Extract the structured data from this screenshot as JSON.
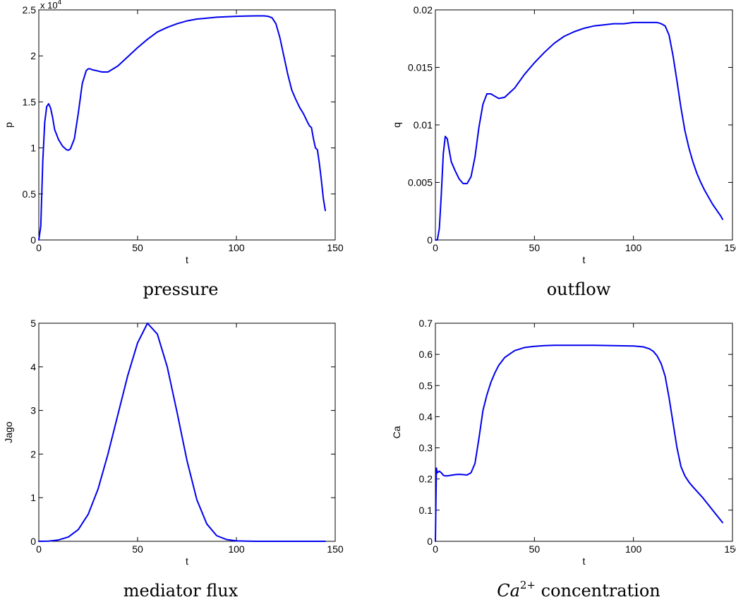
{
  "chart_data": [
    {
      "type": "line",
      "caption": "pressure",
      "xlabel": "t",
      "ylabel": "p",
      "xlim": [
        0,
        150
      ],
      "ylim": [
        0,
        25000
      ],
      "xticks": [
        0,
        50,
        100,
        150
      ],
      "yticks": [
        0,
        5000,
        10000,
        15000,
        20000,
        25000
      ],
      "ytick_labels": [
        "0",
        "0.5",
        "1",
        "1.5",
        "2",
        "2.5"
      ],
      "y_multiplier": {
        "base": "x 10",
        "exp": "4"
      },
      "grid": false,
      "series": [
        {
          "color": "#0000ee",
          "x": [
            0,
            1,
            2,
            3,
            4,
            5,
            6,
            7,
            8,
            10,
            12,
            14,
            15,
            16,
            18,
            20,
            22,
            24,
            25,
            26,
            27,
            28,
            30,
            32,
            35,
            40,
            45,
            50,
            55,
            60,
            65,
            70,
            75,
            80,
            85,
            90,
            95,
            100,
            105,
            110,
            112,
            114,
            116,
            118,
            120,
            122,
            124,
            126,
            128,
            130,
            132,
            134,
            136,
            137,
            138,
            139,
            140,
            141,
            142,
            143,
            144,
            145
          ],
          "y": [
            0,
            1500,
            8500,
            12800,
            14500,
            14800,
            14300,
            13300,
            12000,
            10900,
            10200,
            9800,
            9750,
            9900,
            11000,
            13800,
            17000,
            18400,
            18600,
            18600,
            18500,
            18450,
            18350,
            18250,
            18250,
            18900,
            19900,
            20900,
            21800,
            22600,
            23100,
            23500,
            23800,
            24000,
            24100,
            24200,
            24250,
            24300,
            24330,
            24350,
            24350,
            24350,
            24300,
            24150,
            23500,
            22000,
            20000,
            18000,
            16300,
            15300,
            14400,
            13700,
            12800,
            12400,
            12200,
            11000,
            10000,
            9800,
            8300,
            6500,
            4500,
            3200
          ]
        }
      ]
    },
    {
      "type": "line",
      "caption": "outflow",
      "xlabel": "t",
      "ylabel": "q",
      "xlim": [
        0,
        150
      ],
      "ylim": [
        0,
        0.02
      ],
      "xticks": [
        0,
        50,
        100,
        150
      ],
      "yticks": [
        0,
        0.005,
        0.01,
        0.015,
        0.02
      ],
      "ytick_labels": [
        "0",
        "0.005",
        "0.01",
        "0.015",
        "0.02"
      ],
      "grid": false,
      "series": [
        {
          "color": "#0000ee",
          "x": [
            0,
            1,
            2,
            3,
            4,
            5,
            6,
            7,
            8,
            10,
            12,
            14,
            16,
            18,
            20,
            22,
            24,
            26,
            28,
            30,
            32,
            35,
            40,
            45,
            50,
            55,
            60,
            65,
            70,
            75,
            80,
            85,
            90,
            95,
            100,
            105,
            110,
            112,
            114,
            116,
            118,
            120,
            122,
            124,
            126,
            128,
            130,
            132,
            134,
            136,
            138,
            140,
            142,
            144,
            145
          ],
          "y": [
            0,
            0,
            0.001,
            0.004,
            0.0075,
            0.009,
            0.0088,
            0.0078,
            0.0068,
            0.006,
            0.0053,
            0.0049,
            0.0049,
            0.0055,
            0.0072,
            0.0098,
            0.0118,
            0.0127,
            0.0127,
            0.0125,
            0.0123,
            0.0124,
            0.0132,
            0.0144,
            0.0154,
            0.0163,
            0.0171,
            0.0177,
            0.0181,
            0.0184,
            0.0186,
            0.0187,
            0.0188,
            0.0188,
            0.0189,
            0.0189,
            0.0189,
            0.0189,
            0.0188,
            0.0186,
            0.0178,
            0.016,
            0.0138,
            0.0115,
            0.0095,
            0.008,
            0.0068,
            0.0058,
            0.005,
            0.0043,
            0.0037,
            0.0031,
            0.0026,
            0.0021,
            0.0018
          ]
        }
      ]
    },
    {
      "type": "line",
      "caption": "mediator flux",
      "xlabel": "t",
      "ylabel": "Jago",
      "xlim": [
        0,
        150
      ],
      "ylim": [
        0,
        5
      ],
      "xticks": [
        0,
        50,
        100,
        150
      ],
      "yticks": [
        0,
        1,
        2,
        3,
        4,
        5
      ],
      "ytick_labels": [
        "0",
        "1",
        "2",
        "3",
        "4",
        "5"
      ],
      "grid": false,
      "series": [
        {
          "color": "#0000ee",
          "x": [
            0,
            5,
            10,
            15,
            20,
            25,
            30,
            35,
            40,
            45,
            50,
            55,
            60,
            65,
            70,
            75,
            80,
            85,
            90,
            95,
            100,
            105,
            110,
            120,
            130,
            140,
            145
          ],
          "y": [
            0,
            0.005,
            0.03,
            0.1,
            0.27,
            0.62,
            1.2,
            2.0,
            2.9,
            3.8,
            4.55,
            5.0,
            4.75,
            4.0,
            2.95,
            1.85,
            0.95,
            0.4,
            0.13,
            0.04,
            0.01,
            0.003,
            0,
            0,
            0,
            0,
            0
          ]
        }
      ]
    },
    {
      "type": "line",
      "caption": "concentration",
      "caption_math": {
        "base": "Ca",
        "sup": "2+"
      },
      "xlabel": "t",
      "ylabel": "Ca",
      "xlim": [
        0,
        150
      ],
      "ylim": [
        0,
        0.7
      ],
      "xticks": [
        0,
        50,
        100,
        150
      ],
      "yticks": [
        0,
        0.1,
        0.2,
        0.3,
        0.4,
        0.5,
        0.6,
        0.7
      ],
      "ytick_labels": [
        "0",
        "0.1",
        "0.2",
        "0.3",
        "0.4",
        "0.5",
        "0.6",
        "0.7"
      ],
      "grid": false,
      "series": [
        {
          "color": "#0000ee",
          "x": [
            0,
            0.5,
            1,
            2,
            3,
            4,
            5,
            6,
            8,
            10,
            12,
            14,
            16,
            18,
            20,
            22,
            24,
            26,
            28,
            30,
            32,
            35,
            40,
            45,
            50,
            55,
            60,
            70,
            80,
            90,
            100,
            105,
            108,
            110,
            112,
            114,
            116,
            118,
            120,
            122,
            124,
            126,
            128,
            130,
            135,
            140,
            145
          ],
          "y": [
            0,
            0.235,
            0.22,
            0.225,
            0.22,
            0.212,
            0.21,
            0.21,
            0.212,
            0.214,
            0.215,
            0.214,
            0.213,
            0.22,
            0.25,
            0.33,
            0.42,
            0.47,
            0.51,
            0.54,
            0.565,
            0.59,
            0.612,
            0.622,
            0.626,
            0.628,
            0.629,
            0.629,
            0.629,
            0.628,
            0.627,
            0.624,
            0.618,
            0.61,
            0.595,
            0.57,
            0.53,
            0.46,
            0.38,
            0.3,
            0.24,
            0.21,
            0.19,
            0.175,
            0.14,
            0.1,
            0.06
          ]
        }
      ]
    }
  ]
}
